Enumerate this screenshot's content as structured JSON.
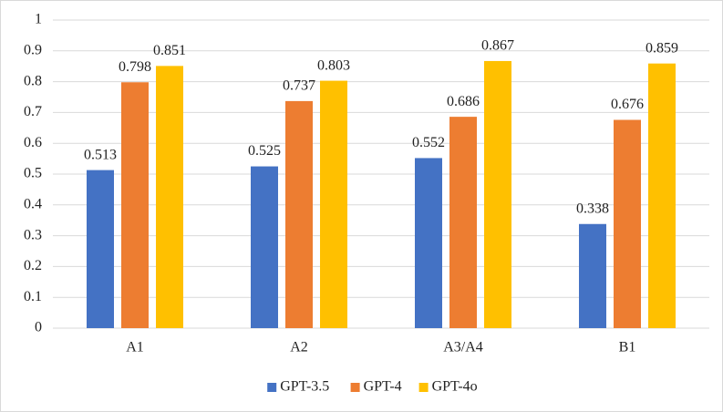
{
  "chart_data": {
    "type": "bar",
    "categories": [
      "A1",
      "A2",
      "A3/A4",
      "B1"
    ],
    "series": [
      {
        "name": "GPT-3.5",
        "color": "#4472c4",
        "values": [
          0.513,
          0.525,
          0.552,
          0.338
        ]
      },
      {
        "name": "GPT-4",
        "color": "#ed7d31",
        "values": [
          0.798,
          0.737,
          0.686,
          0.676
        ]
      },
      {
        "name": "GPT-4o",
        "color": "#ffc000",
        "values": [
          0.851,
          0.803,
          0.867,
          0.859
        ]
      }
    ],
    "ylim": [
      0,
      1
    ],
    "yticks": [
      0,
      0.1,
      0.2,
      0.3,
      0.4,
      0.5,
      0.6,
      0.7,
      0.8,
      0.9,
      1
    ],
    "grid": true,
    "legend": "bottom"
  }
}
